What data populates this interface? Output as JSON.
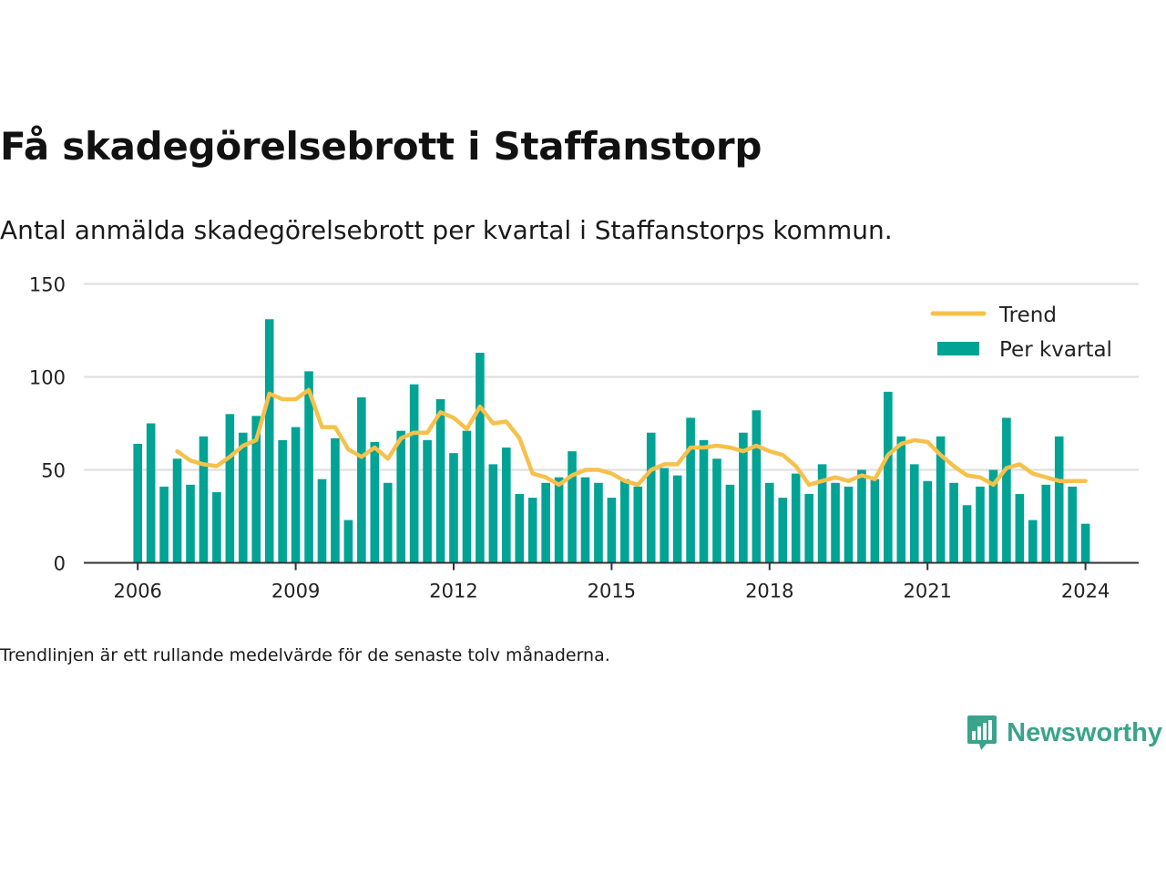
{
  "header": {
    "title": "Få skadegörelsebrott i Staffanstorp",
    "subtitle": "Antal anmälda skadegörelsebrott per kvartal i Staffanstorps kommun."
  },
  "footer": {
    "note": "Trendlinjen är ett rullande medelvärde för de senaste tolv månaderna.",
    "brand": "Newsworthy"
  },
  "icons": {
    "brand": "newsworthy-logo-icon"
  },
  "colors": {
    "bars": "#00a394",
    "trend": "#f6c14b",
    "brand": "#3aa38b",
    "grid": "#dddddd",
    "axis": "#333333"
  },
  "chart_data": {
    "type": "bar",
    "x_unit": "quarter",
    "start": "2006 Q1",
    "xticks": [
      "2006",
      "2009",
      "2012",
      "2015",
      "2018",
      "2021",
      "2024"
    ],
    "yticks": [
      "0",
      "50",
      "100",
      "150"
    ],
    "ylim": [
      0,
      150
    ],
    "grid": true,
    "legend_position": "top-right",
    "series": [
      {
        "name": "Per kvartal",
        "kind": "bar",
        "values": [
          64,
          75,
          41,
          56,
          42,
          68,
          38,
          80,
          70,
          79,
          131,
          66,
          73,
          103,
          45,
          67,
          23,
          89,
          65,
          43,
          71,
          96,
          66,
          88,
          59,
          71,
          113,
          53,
          62,
          37,
          35,
          43,
          46,
          60,
          46,
          43,
          35,
          45,
          41,
          70,
          51,
          47,
          78,
          66,
          56,
          42,
          70,
          82,
          43,
          35,
          48,
          37,
          53,
          43,
          41,
          50,
          45,
          92,
          68,
          53,
          44,
          68,
          43,
          31,
          41,
          50,
          78,
          37,
          23,
          42,
          68,
          41,
          21
        ]
      },
      {
        "name": "Trend",
        "kind": "line",
        "values": [
          null,
          null,
          null,
          60,
          55,
          53,
          52,
          57,
          63,
          66,
          91,
          88,
          88,
          93,
          73,
          73,
          61,
          57,
          62,
          56,
          67,
          70,
          70,
          81,
          78,
          72,
          84,
          75,
          76,
          67,
          48,
          46,
          42,
          47,
          50,
          50,
          48,
          44,
          42,
          50,
          53,
          53,
          62,
          62,
          63,
          62,
          60,
          63,
          60,
          58,
          52,
          42,
          44,
          46,
          44,
          47,
          45,
          58,
          64,
          66,
          65,
          58,
          52,
          47,
          46,
          42,
          51,
          53,
          48,
          46,
          44,
          44,
          44
        ]
      }
    ]
  }
}
